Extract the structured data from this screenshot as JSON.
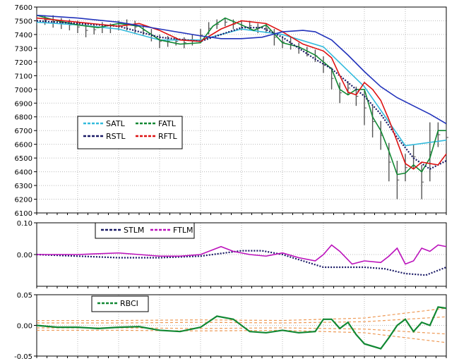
{
  "chart_data": [
    {
      "type": "line",
      "ylim": [
        6100,
        7600
      ],
      "yticks": [
        6100,
        6200,
        6300,
        6400,
        6500,
        6600,
        6700,
        6800,
        6900,
        7000,
        7100,
        7200,
        7300,
        7400,
        7500,
        7600
      ],
      "ytick_labels": [
        "6100",
        "6200",
        "6300",
        "6400",
        "6500",
        "6600",
        "6700",
        "6800",
        "6900",
        "7000",
        "7100",
        "7200",
        "7300",
        "7400",
        "7500",
        "7600"
      ],
      "xlim": [
        0,
        100
      ],
      "grid": true,
      "legend_placement": "middle-left",
      "price_bars": [
        [
          0,
          7470,
          7570
        ],
        [
          2,
          7470,
          7540
        ],
        [
          4,
          7450,
          7540
        ],
        [
          6,
          7440,
          7520
        ],
        [
          8,
          7430,
          7510
        ],
        [
          10,
          7410,
          7500
        ],
        [
          12,
          7380,
          7480
        ],
        [
          14,
          7400,
          7470
        ],
        [
          16,
          7410,
          7490
        ],
        [
          18,
          7410,
          7480
        ],
        [
          20,
          7430,
          7500
        ],
        [
          22,
          7430,
          7510
        ],
        [
          24,
          7410,
          7500
        ],
        [
          26,
          7390,
          7470
        ],
        [
          28,
          7350,
          7440
        ],
        [
          30,
          7300,
          7400
        ],
        [
          32,
          7310,
          7390
        ],
        [
          34,
          7320,
          7380
        ],
        [
          36,
          7300,
          7380
        ],
        [
          38,
          7320,
          7400
        ],
        [
          40,
          7350,
          7440
        ],
        [
          42,
          7400,
          7490
        ],
        [
          44,
          7440,
          7510
        ],
        [
          46,
          7460,
          7520
        ],
        [
          48,
          7440,
          7510
        ],
        [
          50,
          7430,
          7500
        ],
        [
          52,
          7430,
          7500
        ],
        [
          54,
          7410,
          7480
        ],
        [
          56,
          7410,
          7480
        ],
        [
          58,
          7320,
          7440
        ],
        [
          60,
          7300,
          7390
        ],
        [
          62,
          7290,
          7380
        ],
        [
          64,
          7260,
          7340
        ],
        [
          66,
          7240,
          7310
        ],
        [
          68,
          7200,
          7290
        ],
        [
          70,
          7120,
          7240
        ],
        [
          72,
          7000,
          7160
        ],
        [
          74,
          6900,
          7050
        ],
        [
          76,
          6960,
          7060
        ],
        [
          78,
          6880,
          7020
        ],
        [
          80,
          6740,
          6990
        ],
        [
          82,
          6650,
          6880
        ],
        [
          84,
          6560,
          6770
        ],
        [
          86,
          6330,
          6610
        ],
        [
          88,
          6200,
          6480
        ],
        [
          90,
          6330,
          6530
        ],
        [
          92,
          6420,
          6600
        ],
        [
          94,
          6200,
          6450
        ],
        [
          96,
          6330,
          6760
        ],
        [
          98,
          6580,
          6760
        ],
        [
          100,
          6560,
          6740
        ]
      ],
      "series": [
        {
          "name": "SATL",
          "color": "#33bbdd",
          "x": [
            0,
            10,
            20,
            30,
            40,
            50,
            60,
            70,
            80,
            90,
            100
          ],
          "y": [
            7490,
            7470,
            7440,
            7360,
            7360,
            7440,
            7400,
            7310,
            7020,
            6590,
            6630
          ]
        },
        {
          "name": "FATL",
          "color": "#118833",
          "x": [
            0,
            5,
            10,
            15,
            20,
            25,
            30,
            35,
            40,
            43,
            46,
            50,
            53,
            56,
            60,
            64,
            68,
            72,
            74,
            76,
            78,
            80,
            82,
            84,
            86,
            88,
            90,
            92,
            94,
            96,
            98,
            100
          ],
          "y": [
            7540,
            7500,
            7470,
            7450,
            7480,
            7460,
            7360,
            7330,
            7340,
            7460,
            7520,
            7470,
            7430,
            7470,
            7340,
            7310,
            7250,
            7150,
            7000,
            6960,
            7000,
            7000,
            6800,
            6700,
            6550,
            6380,
            6390,
            6450,
            6400,
            6500,
            6700,
            6700
          ]
        },
        {
          "name": "RSTL",
          "color": "#1a1a66",
          "x": [
            0,
            10,
            20,
            30,
            40,
            45,
            50,
            55,
            60,
            64,
            68,
            72,
            76,
            80,
            84,
            88,
            92,
            96,
            100
          ],
          "y": [
            7500,
            7480,
            7460,
            7380,
            7350,
            7400,
            7450,
            7450,
            7380,
            7300,
            7220,
            7150,
            7050,
            6950,
            6820,
            6650,
            6500,
            6420,
            6480
          ]
        },
        {
          "name": "RFTL",
          "color": "#dd1111",
          "x": [
            0,
            10,
            20,
            25,
            30,
            35,
            40,
            45,
            50,
            56,
            60,
            65,
            70,
            72,
            74,
            76,
            78,
            80,
            82,
            84,
            86,
            88,
            90,
            92,
            94,
            96,
            98,
            100
          ],
          "y": [
            7520,
            7490,
            7460,
            7480,
            7430,
            7360,
            7350,
            7440,
            7500,
            7480,
            7420,
            7330,
            7280,
            7230,
            7100,
            6980,
            6960,
            7050,
            7000,
            6920,
            6780,
            6620,
            6460,
            6420,
            6470,
            6460,
            6450,
            6530
          ]
        },
        {
          "name": "",
          "color": "#2233bb",
          "x": [
            0,
            10,
            20,
            30,
            40,
            45,
            50,
            55,
            60,
            65,
            68,
            72,
            76,
            80,
            84,
            88,
            92,
            96,
            100
          ],
          "y": [
            7540,
            7520,
            7490,
            7440,
            7390,
            7370,
            7370,
            7380,
            7420,
            7430,
            7420,
            7360,
            7250,
            7130,
            7020,
            6940,
            6880,
            6820,
            6750
          ]
        }
      ],
      "legend": {
        "entries": [
          "SATL",
          "FATL",
          "RSTL",
          "RFTL"
        ]
      }
    },
    {
      "type": "line",
      "ylim": [
        -0.1,
        0.1
      ],
      "yticks": [
        0.1,
        0.0
      ],
      "ytick_labels": [
        "0.10",
        "0.00"
      ],
      "xlim": [
        0,
        100
      ],
      "grid": true,
      "legend_placement": "top-left",
      "series": [
        {
          "name": "STLM",
          "color": "#1a1a66",
          "x": [
            0,
            10,
            20,
            30,
            40,
            50,
            55,
            60,
            65,
            70,
            75,
            80,
            85,
            90,
            95,
            100
          ],
          "y": [
            0.0,
            -0.005,
            -0.01,
            -0.01,
            -0.005,
            0.012,
            0.012,
            0.0,
            -0.02,
            -0.04,
            -0.04,
            -0.04,
            -0.045,
            -0.06,
            -0.065,
            -0.04
          ]
        },
        {
          "name": "FTLM",
          "color": "#bb11bb",
          "x": [
            0,
            10,
            20,
            25,
            30,
            35,
            40,
            45,
            48,
            52,
            56,
            60,
            64,
            68,
            70,
            72,
            74,
            77,
            80,
            84,
            86,
            88,
            90,
            92,
            94,
            96,
            98,
            100
          ],
          "y": [
            0.0,
            0.0,
            0.005,
            0.0,
            -0.005,
            -0.005,
            0.0,
            0.025,
            0.01,
            0.0,
            -0.005,
            0.005,
            -0.01,
            -0.02,
            0.0,
            0.03,
            0.01,
            -0.03,
            -0.02,
            -0.025,
            -0.005,
            0.02,
            -0.03,
            -0.02,
            0.02,
            0.01,
            0.03,
            0.025
          ]
        }
      ],
      "legend": {
        "entries": [
          "STLM",
          "FTLM"
        ]
      }
    },
    {
      "type": "line",
      "ylim": [
        -0.05,
        0.05
      ],
      "yticks": [
        0.05,
        0.0,
        -0.05
      ],
      "ytick_labels": [
        "0.05",
        "0.00",
        "-0.05"
      ],
      "xlim": [
        0,
        100
      ],
      "grid": true,
      "legend_placement": "top-left",
      "series": [
        {
          "name": "RBCI",
          "color": "#118833",
          "x": [
            0,
            5,
            10,
            15,
            20,
            25,
            30,
            35,
            40,
            44,
            48,
            52,
            56,
            60,
            64,
            68,
            70,
            72,
            74,
            76,
            78,
            80,
            84,
            86,
            88,
            90,
            92,
            94,
            96,
            98,
            100
          ],
          "y": [
            0.0,
            -0.003,
            -0.003,
            -0.005,
            -0.003,
            -0.002,
            -0.008,
            -0.01,
            -0.003,
            0.015,
            0.01,
            -0.01,
            -0.012,
            -0.008,
            -0.012,
            -0.01,
            0.01,
            0.01,
            -0.005,
            0.005,
            -0.015,
            -0.03,
            -0.038,
            -0.02,
            0.0,
            0.01,
            -0.01,
            0.005,
            0.0,
            0.03,
            0.028
          ]
        }
      ],
      "bands": [
        {
          "x": [
            0,
            20,
            40,
            60,
            80,
            90,
            100
          ],
          "y": [
            0.008,
            0.008,
            0.009,
            0.008,
            0.012,
            0.02,
            0.028
          ]
        },
        {
          "x": [
            0,
            20,
            40,
            60,
            80,
            90,
            100
          ],
          "y": [
            0.004,
            0.004,
            0.005,
            0.004,
            0.006,
            0.01,
            0.014
          ]
        },
        {
          "x": [
            0,
            20,
            40,
            60,
            80,
            90,
            100
          ],
          "y": [
            -0.004,
            -0.004,
            -0.005,
            -0.004,
            -0.006,
            -0.01,
            -0.014
          ]
        },
        {
          "x": [
            0,
            20,
            40,
            60,
            80,
            90,
            100
          ],
          "y": [
            -0.008,
            -0.008,
            -0.009,
            -0.008,
            -0.012,
            -0.02,
            -0.028
          ]
        }
      ],
      "band_color": "#ee9955",
      "legend": {
        "entries": [
          "RBCI"
        ]
      }
    }
  ]
}
